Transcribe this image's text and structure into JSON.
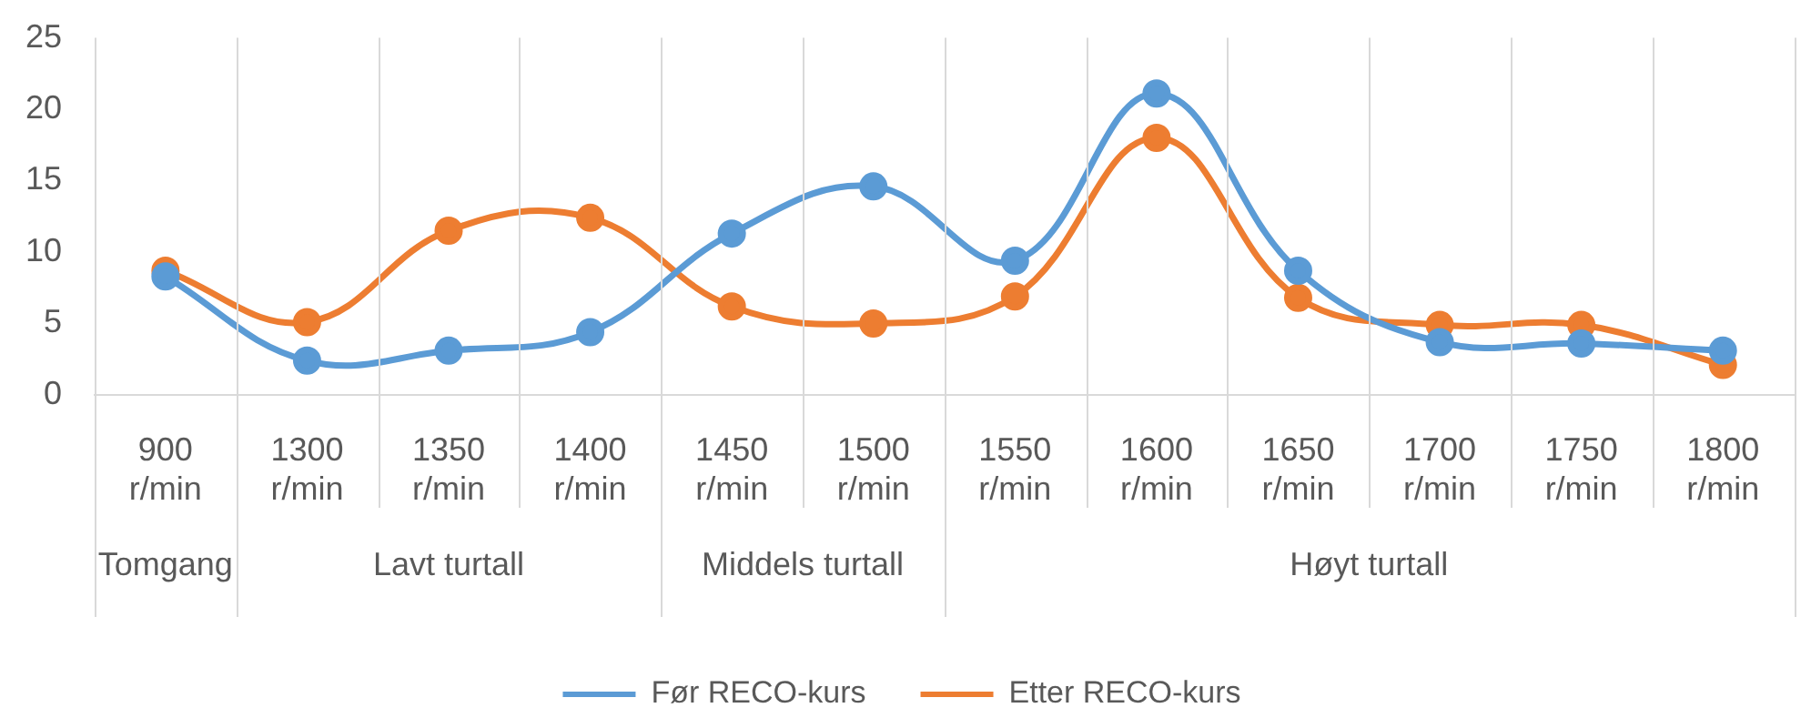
{
  "chart_data": {
    "type": "line",
    "categories": [
      "900 r/min",
      "1300 r/min",
      "1350 r/min",
      "1400 r/min",
      "1450 r/min",
      "1500 r/min",
      "1550 r/min",
      "1600 r/min",
      "1650 r/min",
      "1700 r/min",
      "1750 r/min",
      "1800 r/min"
    ],
    "series": [
      {
        "name": "Før RECO-kurs",
        "color": "#5b9bd5",
        "values": [
          8.3,
          2.4,
          3.1,
          4.4,
          11.3,
          14.6,
          9.4,
          21.1,
          8.7,
          3.7,
          3.6,
          3.1
        ]
      },
      {
        "name": "Etter RECO-kurs",
        "color": "#ed7d31",
        "values": [
          8.7,
          5.1,
          11.5,
          12.4,
          6.2,
          5.0,
          6.9,
          18.0,
          6.8,
          4.9,
          4.9,
          2.1
        ]
      }
    ],
    "ylim": [
      0,
      25
    ],
    "yticks": [
      0,
      5,
      10,
      15,
      20,
      25
    ],
    "grid": "x",
    "legend": "bottom",
    "marker": "circle",
    "line_style": "solid",
    "annotations": [
      "Tomgang",
      "Lavt turtall",
      "Middels turtall",
      "Høyt turtall"
    ]
  }
}
